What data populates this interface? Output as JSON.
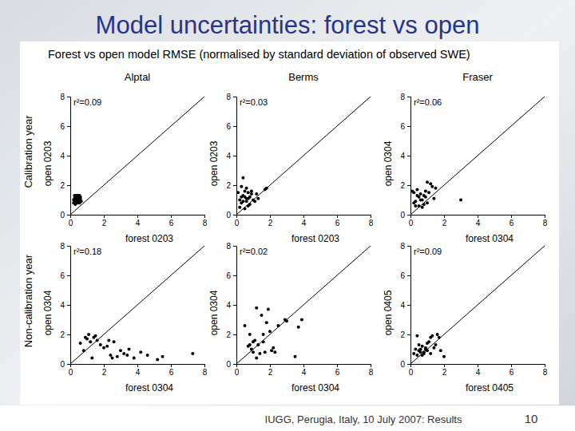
{
  "slide": {
    "title": "Model uncertainties: forest vs open",
    "figure_title": "Forest vs open model RMSE (normalised by standard deviation of observed SWE)",
    "columns": [
      "Alptal",
      "Berms",
      "Fraser"
    ],
    "rows": [
      "Calibration year",
      "Non-calibration year"
    ],
    "footer": "IUGG, Perugia, Italy, 10 July 2007: Results",
    "page": 10
  },
  "chart_data": [
    {
      "type": "scatter",
      "xlabel": "forest 0203",
      "ylabel": "open 0203",
      "annotation": "r²=0.09",
      "x": [
        0.2,
        0.3,
        0.35,
        0.4,
        0.45,
        0.5,
        0.55,
        0.6,
        0.25,
        0.3,
        0.4,
        0.5,
        0.6,
        0.65,
        0.3,
        0.35,
        0.45,
        0.55,
        0.2,
        0.4,
        0.5,
        0.6,
        0.3,
        0.45,
        0.35,
        0.5,
        0.25,
        0.55
      ],
      "values": [
        1.0,
        1.1,
        0.9,
        1.2,
        0.8,
        1.3,
        1.0,
        1.1,
        1.3,
        0.7,
        1.0,
        0.9,
        1.2,
        0.9,
        1.2,
        1.0,
        1.3,
        0.8,
        0.8,
        0.9,
        1.1,
        1.0,
        0.9,
        1.1,
        1.3,
        1.2,
        1.1,
        1.3
      ],
      "xlim": [
        0,
        8
      ],
      "ylim": [
        0,
        8
      ],
      "xticks": [
        0,
        2,
        4,
        6,
        8
      ],
      "yticks": [
        0,
        2,
        4,
        6,
        8
      ],
      "color": "#000000",
      "marker": "circle"
    },
    {
      "type": "scatter",
      "xlabel": "forest 0203",
      "ylabel": "open 0203",
      "annotation": "r²=0.03",
      "x": [
        0.1,
        0.2,
        0.3,
        0.4,
        0.5,
        0.6,
        0.7,
        0.8,
        0.9,
        1.0,
        0.3,
        0.5,
        0.7,
        0.2,
        0.4,
        0.6,
        0.8,
        1.1,
        1.2,
        1.3,
        1.7,
        1.8,
        0.5,
        0.4,
        0.9,
        0.6,
        0.3,
        0.7
      ],
      "values": [
        1.5,
        1.0,
        0.8,
        2.5,
        1.2,
        0.9,
        1.1,
        0.7,
        1.4,
        1.0,
        1.9,
        1.6,
        0.6,
        0.5,
        1.3,
        1.8,
        1.2,
        0.9,
        1.4,
        1.1,
        1.7,
        1.8,
        0.4,
        0.9,
        1.6,
        1.1,
        1.2,
        1.5
      ],
      "xlim": [
        0,
        8
      ],
      "ylim": [
        0,
        8
      ],
      "xticks": [
        0,
        2,
        4,
        6,
        8
      ],
      "yticks": [
        0,
        2,
        4,
        6,
        8
      ],
      "color": "#000000",
      "marker": "circle"
    },
    {
      "type": "scatter",
      "xlabel": "forest 0304",
      "ylabel": "open 0304",
      "annotation": "r²=0.06",
      "x": [
        0.1,
        0.2,
        0.3,
        0.4,
        0.5,
        0.6,
        0.7,
        0.8,
        0.9,
        1.0,
        1.1,
        1.2,
        1.3,
        1.5,
        0.3,
        0.5,
        0.7,
        0.9,
        0.2,
        0.6,
        1.0,
        3.0,
        0.4,
        0.8,
        1.4
      ],
      "values": [
        1.6,
        1.5,
        0.9,
        1.7,
        0.6,
        1.4,
        1.0,
        1.3,
        1.2,
        0.8,
        1.5,
        2.1,
        1.9,
        1.8,
        0.6,
        1.2,
        0.5,
        1.6,
        0.8,
        1.0,
        2.2,
        1.0,
        1.3,
        0.7,
        1.1
      ],
      "xlim": [
        0,
        8
      ],
      "ylim": [
        0,
        8
      ],
      "xticks": [
        0,
        2,
        4,
        6,
        8
      ],
      "yticks": [
        0,
        2,
        4,
        6,
        8
      ],
      "color": "#000000",
      "marker": "circle"
    },
    {
      "type": "scatter",
      "xlabel": "forest 0304",
      "ylabel": "open 0304",
      "annotation": "r²=0.18",
      "x": [
        0.6,
        0.8,
        1.0,
        1.2,
        1.4,
        1.6,
        1.8,
        2.0,
        2.2,
        2.4,
        2.6,
        2.8,
        3.0,
        3.2,
        3.4,
        3.8,
        4.2,
        4.6,
        5.2,
        5.5,
        7.3,
        1.1,
        1.5,
        2.3,
        1.3,
        3.5,
        2.5,
        0.9
      ],
      "values": [
        1.4,
        0.9,
        1.7,
        1.5,
        1.8,
        1.6,
        1.3,
        1.1,
        1.2,
        0.6,
        1.5,
        0.5,
        0.9,
        0.7,
        0.6,
        0.4,
        0.8,
        0.6,
        0.3,
        0.5,
        0.7,
        2.0,
        1.9,
        1.6,
        0.4,
        1.0,
        0.4,
        1.8
      ],
      "xlim": [
        0,
        8
      ],
      "ylim": [
        0,
        8
      ],
      "xticks": [
        0,
        2,
        4,
        6,
        8
      ],
      "yticks": [
        0,
        2,
        4,
        6,
        8
      ],
      "color": "#000000",
      "marker": "circle"
    },
    {
      "type": "scatter",
      "xlabel": "forest 0304",
      "ylabel": "open 0304",
      "annotation": "r²=0.02",
      "x": [
        0.5,
        0.7,
        0.8,
        0.9,
        1.0,
        1.1,
        1.2,
        1.3,
        1.4,
        1.5,
        1.6,
        1.7,
        1.8,
        2.0,
        2.1,
        2.2,
        2.5,
        2.9,
        3.0,
        3.5,
        3.7,
        3.9,
        0.8,
        1.2,
        1.6,
        2.3,
        1.0,
        1.9
      ],
      "values": [
        2.6,
        1.2,
        2.0,
        1.0,
        0.8,
        1.6,
        3.8,
        1.3,
        0.7,
        3.3,
        1.5,
        0.8,
        2.8,
        2.2,
        0.9,
        1.1,
        2.6,
        3.0,
        2.9,
        0.5,
        2.5,
        3.0,
        1.3,
        0.4,
        2.0,
        0.8,
        1.5,
        3.7
      ],
      "xlim": [
        0,
        8
      ],
      "ylim": [
        0,
        8
      ],
      "xticks": [
        0,
        2,
        4,
        6,
        8
      ],
      "yticks": [
        0,
        2,
        4,
        6,
        8
      ],
      "color": "#000000",
      "marker": "circle"
    },
    {
      "type": "scatter",
      "xlabel": "forest 0405",
      "ylabel": "open 0405",
      "annotation": "r²=0.09",
      "x": [
        0.2,
        0.3,
        0.4,
        0.5,
        0.6,
        0.7,
        0.8,
        0.9,
        1.0,
        1.1,
        1.2,
        1.3,
        1.4,
        1.5,
        1.6,
        1.7,
        1.8,
        2.0,
        0.5,
        0.7,
        0.9,
        1.2,
        0.4,
        0.8,
        1.0,
        0.6
      ],
      "values": [
        0.7,
        1.0,
        0.6,
        0.9,
        0.8,
        1.2,
        0.7,
        1.0,
        0.9,
        1.5,
        1.8,
        1.9,
        1.1,
        1.3,
        2.0,
        1.8,
        0.9,
        0.5,
        1.3,
        0.6,
        1.1,
        0.7,
        1.9,
        0.8,
        1.4,
        1.0
      ],
      "xlim": [
        0,
        8
      ],
      "ylim": [
        0,
        8
      ],
      "xticks": [
        0,
        2,
        4,
        6,
        8
      ],
      "yticks": [
        0,
        2,
        4,
        6,
        8
      ],
      "color": "#000000",
      "marker": "circle"
    }
  ]
}
